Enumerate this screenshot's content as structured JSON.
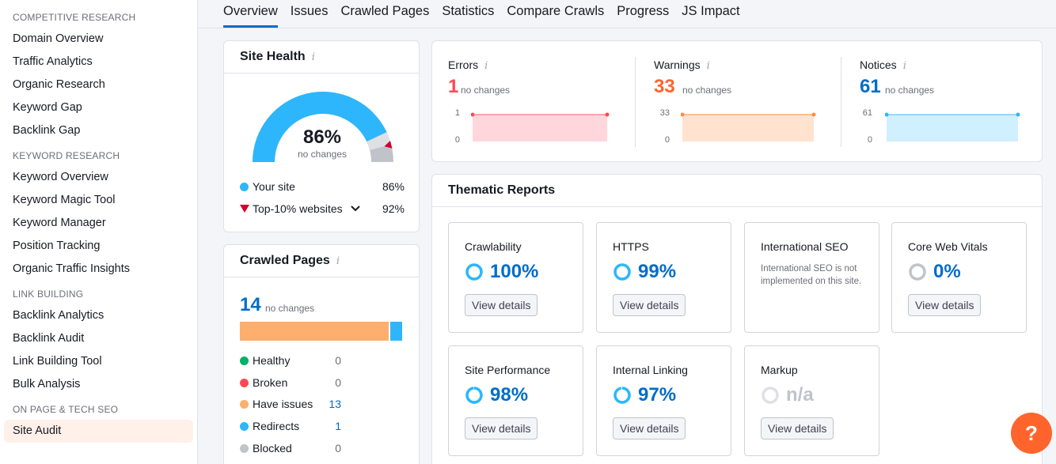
{
  "sidebar": {
    "sections": [
      {
        "title": "COMPETITIVE RESEARCH",
        "items": [
          "Domain Overview",
          "Traffic Analytics",
          "Organic Research",
          "Keyword Gap",
          "Backlink Gap"
        ]
      },
      {
        "title": "KEYWORD RESEARCH",
        "items": [
          "Keyword Overview",
          "Keyword Magic Tool",
          "Keyword Manager",
          "Position Tracking",
          "Organic Traffic Insights"
        ]
      },
      {
        "title": "LINK BUILDING",
        "items": [
          "Backlink Analytics",
          "Backlink Audit",
          "Link Building Tool",
          "Bulk Analysis"
        ]
      },
      {
        "title": "ON PAGE & TECH SEO",
        "items": [
          "Site Audit"
        ]
      }
    ]
  },
  "tabs": [
    "Overview",
    "Issues",
    "Crawled Pages",
    "Statistics",
    "Compare Crawls",
    "Progress",
    "JS Impact"
  ],
  "site_health": {
    "title": "Site Health",
    "info": "i",
    "value": "86%",
    "sub": "no changes",
    "your_site_label": "Your site",
    "your_site_value": "86%",
    "top_label": "Top-10% websites",
    "top_value": "92%",
    "gauge_fraction": 0.86,
    "top_fraction": 0.92,
    "colors": {
      "site": "#2db6fc",
      "top": "#c1c3cb",
      "marker": "#d1002f"
    }
  },
  "crawled_pages": {
    "title": "Crawled Pages",
    "info": "i",
    "count": "14",
    "sub": "no changes",
    "rows": [
      {
        "label": "Healthy",
        "value": "0",
        "color": "#00b265",
        "link": false
      },
      {
        "label": "Broken",
        "value": "0",
        "color": "#ff4953",
        "link": false
      },
      {
        "label": "Have issues",
        "value": "13",
        "color": "#ffae6b",
        "link": true
      },
      {
        "label": "Redirects",
        "value": "1",
        "color": "#2db6fc",
        "link": true
      },
      {
        "label": "Blocked",
        "value": "0",
        "color": "#c1c3cb",
        "link": false
      }
    ]
  },
  "metrics": {
    "errors": {
      "title": "Errors",
      "value": "1",
      "sub": "no changes",
      "tick_top": "1",
      "tick_bottom": "0",
      "color": "#ff4953"
    },
    "warnings": {
      "title": "Warnings",
      "value": "33",
      "sub": "no changes",
      "tick_top": "33",
      "tick_bottom": "0",
      "color": "#ff8c43"
    },
    "notices": {
      "title": "Notices",
      "value": "61",
      "sub": "no changes",
      "tick_top": "61",
      "tick_bottom": "0",
      "color": "#2db6fc"
    }
  },
  "thematic": {
    "title": "Thematic Reports",
    "view_label": "View details",
    "cards": [
      {
        "title": "Crawlability",
        "value": "100%",
        "fraction": 1.0
      },
      {
        "title": "HTTPS",
        "value": "99%",
        "fraction": 0.99
      },
      {
        "title": "International SEO",
        "note": "International SEO is not implemented on this site."
      },
      {
        "title": "Core Web Vitals",
        "value": "0%",
        "fraction": 0.0
      },
      {
        "title": "Site Performance",
        "value": "98%",
        "fraction": 0.98
      },
      {
        "title": "Internal Linking",
        "value": "97%",
        "fraction": 0.97
      },
      {
        "title": "Markup",
        "value": "n/a",
        "fraction": 0.0
      }
    ]
  },
  "help_label": "?"
}
